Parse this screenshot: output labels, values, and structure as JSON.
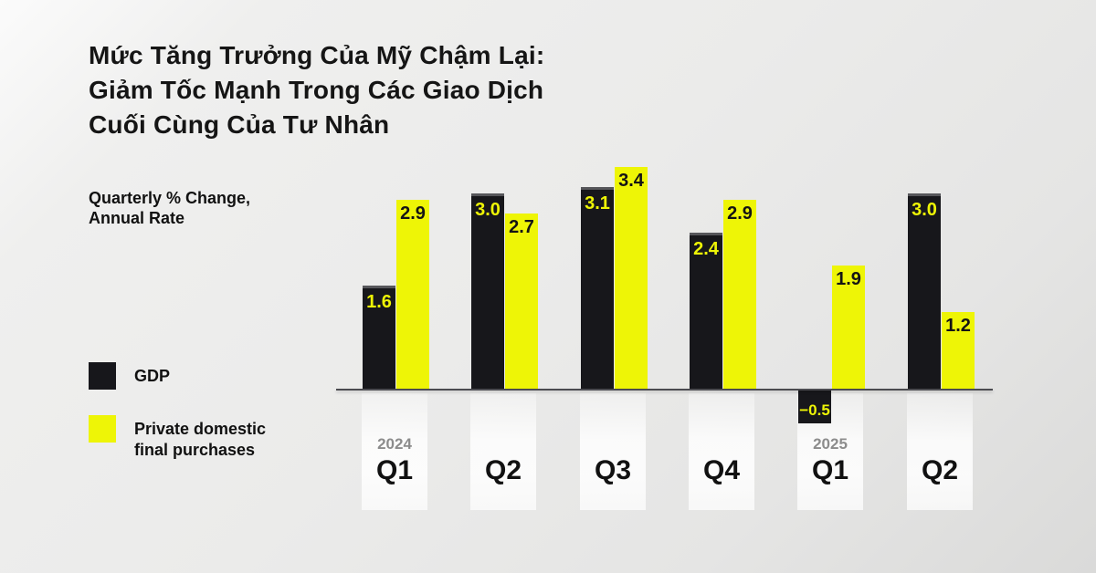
{
  "title": {
    "lines": [
      "Mức Tăng Trưởng Của Mỹ Chậm Lại:",
      "Giảm Tốc Mạnh Trong Các Giao Dịch",
      "Cuối Cùng Của Tư Nhân"
    ]
  },
  "subtitle": {
    "line1": "Quarterly % Change,",
    "line2": "Annual Rate"
  },
  "legend": [
    {
      "key": "gdp",
      "label": "GDP",
      "color": "#17171b"
    },
    {
      "key": "pdfp",
      "label": "Private domestic final purchases",
      "label_line1": "Private domestic",
      "label_line2": "final purchases",
      "color": "#eef506"
    }
  ],
  "colors": {
    "gdp_bar": "#17171b",
    "pdfp_bar": "#eef506",
    "gdp_value_text": "#eef506",
    "pdfp_value_text": "#141414",
    "axis": "#4b4b50",
    "year_text": "#8c8c8c",
    "quarter_text": "#111111"
  },
  "chart_data": {
    "type": "bar",
    "title": "Mức Tăng Trưởng Của Mỹ Chậm Lại: Giảm Tốc Mạnh Trong Các Giao Dịch Cuối Cùng Của Tư Nhân",
    "ylabel": "Quarterly % Change, Annual Rate",
    "categories": [
      "Q1",
      "Q2",
      "Q3",
      "Q4",
      "Q1",
      "Q2"
    ],
    "year_markers": [
      {
        "index": 0,
        "label": "2024"
      },
      {
        "index": 4,
        "label": "2025"
      }
    ],
    "series": [
      {
        "name": "GDP",
        "key": "gdp",
        "color": "#17171b",
        "label_color": "#eef506",
        "values": [
          1.6,
          3.0,
          3.1,
          2.4,
          -0.5,
          3.0
        ],
        "labels": [
          "1.6",
          "3.0",
          "3.1",
          "2.4",
          "−0.5",
          "3.0"
        ]
      },
      {
        "name": "Private domestic final purchases",
        "key": "pdfp",
        "color": "#eef506",
        "label_color": "#141414",
        "values": [
          2.9,
          2.7,
          3.4,
          2.9,
          1.9,
          1.2
        ],
        "labels": [
          "2.9",
          "2.7",
          "3.4",
          "2.9",
          "1.9",
          "1.2"
        ]
      }
    ],
    "baseline": 0,
    "grid": false,
    "legend_position": "left",
    "value_labels_shown": true
  }
}
